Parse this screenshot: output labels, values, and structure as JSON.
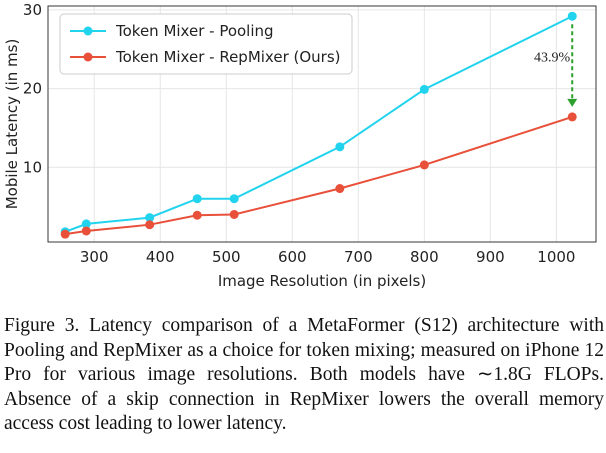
{
  "chart_data": {
    "type": "line",
    "xlabel": "Image Resolution (in pixels)",
    "ylabel": "Mobile Latency (in ms)",
    "xlim": [
      230,
      1060
    ],
    "ylim": [
      0.5,
      30.5
    ],
    "xticks": [
      300,
      400,
      500,
      600,
      700,
      800,
      900,
      1000
    ],
    "yticks": [
      10,
      20,
      30
    ],
    "grid": true,
    "legend_position": "top-left",
    "series": [
      {
        "name": "Token Mixer - Pooling",
        "color": "#22d3ee",
        "x": [
          256,
          288,
          384,
          456,
          512,
          672,
          800,
          1024
        ],
        "y": [
          1.8,
          2.8,
          3.6,
          6.0,
          6.0,
          12.6,
          19.9,
          29.2
        ]
      },
      {
        "name": "Token Mixer - RepMixer (Ours)",
        "color": "#e8503a",
        "x": [
          256,
          288,
          384,
          456,
          512,
          672,
          800,
          1024
        ],
        "y": [
          1.5,
          1.9,
          2.7,
          3.9,
          4.0,
          7.3,
          10.3,
          16.4
        ]
      }
    ],
    "annotations": [
      {
        "text": "43.9%",
        "x": 1024,
        "y_from": 29.2,
        "y_to": 16.4,
        "color": "#2ca02c"
      }
    ]
  },
  "caption": "Figure 3. Latency comparison of a MetaFormer (S12) architecture with Pooling and RepMixer as a choice for token mixing; measured on iPhone 12 Pro for various image resolutions. Both models have ∼1.8G FLOPs. Absence of a skip connection in RepMixer lowers the overall memory access cost leading to lower latency."
}
